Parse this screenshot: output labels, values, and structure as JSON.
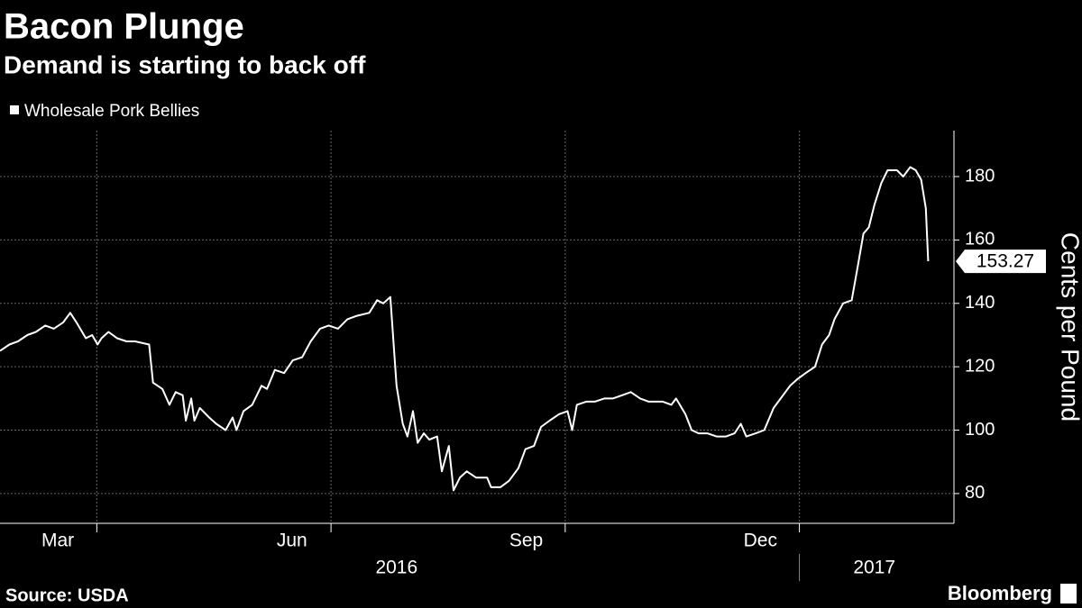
{
  "chart_data": {
    "type": "line",
    "title": "Bacon Plunge",
    "subtitle": "Demand is starting to back off",
    "y_label": "Cents per Pound",
    "source": "Source: USDA",
    "brand": "Bloomberg",
    "legend_position": "top-left",
    "grid": true,
    "xlim": [
      1.76,
      13.98
    ],
    "ylim": [
      70.6,
      194.5
    ],
    "yticks": [
      80,
      100,
      120,
      140,
      160,
      180
    ],
    "xticks": [
      {
        "value": 2.5,
        "label": "Mar"
      },
      {
        "value": 5.5,
        "label": "Jun"
      },
      {
        "value": 8.5,
        "label": "Sep"
      },
      {
        "value": 11.5,
        "label": "Dec"
      }
    ],
    "xgrid": [
      3,
      6,
      9,
      12
    ],
    "year_ticks": [
      {
        "value": 6.84,
        "label": "2016"
      },
      {
        "value": 12.96,
        "label": "2017"
      }
    ],
    "series": [
      {
        "name": "Wholesale Pork Bellies",
        "color": "#ffffff",
        "x": [
          1.76,
          1.88,
          1.99,
          2.11,
          2.22,
          2.34,
          2.45,
          2.57,
          2.66,
          2.74,
          2.86,
          2.94,
          3.01,
          3.06,
          3.15,
          3.26,
          3.38,
          3.49,
          3.67,
          3.72,
          3.84,
          3.93,
          4.01,
          4.1,
          4.14,
          4.21,
          4.25,
          4.32,
          4.44,
          4.53,
          4.65,
          4.74,
          4.79,
          4.88,
          4.99,
          5.11,
          5.18,
          5.28,
          5.4,
          5.51,
          5.63,
          5.74,
          5.86,
          5.97,
          6.09,
          6.21,
          6.32,
          6.49,
          6.59,
          6.67,
          6.76,
          6.84,
          6.92,
          6.98,
          7.05,
          7.11,
          7.19,
          7.26,
          7.36,
          7.42,
          7.51,
          7.57,
          7.65,
          7.74,
          7.86,
          8.0,
          8.05,
          8.17,
          8.28,
          8.4,
          8.49,
          8.6,
          8.69,
          8.8,
          8.92,
          9.03,
          9.09,
          9.15,
          9.27,
          9.38,
          9.5,
          9.61,
          9.73,
          9.84,
          9.96,
          10.07,
          10.25,
          10.36,
          10.42,
          10.54,
          10.62,
          10.71,
          10.82,
          10.94,
          11.06,
          11.17,
          11.25,
          11.32,
          11.44,
          11.55,
          11.67,
          11.76,
          11.88,
          11.97,
          12.08,
          12.2,
          12.29,
          12.38,
          12.45,
          12.56,
          12.67,
          12.75,
          12.82,
          12.89,
          12.96,
          13.05,
          13.13,
          13.25,
          13.33,
          13.42,
          13.49,
          13.56,
          13.62,
          13.65
        ],
        "values": [
          125,
          127,
          128,
          130,
          131,
          133,
          132,
          134,
          137,
          134,
          129,
          130,
          127,
          129,
          131,
          129,
          128,
          128,
          127,
          115,
          113,
          108,
          112,
          111,
          103,
          110,
          103,
          107,
          104,
          102,
          100,
          104,
          100,
          106,
          108,
          114,
          113,
          119,
          118,
          122,
          123,
          128,
          132,
          133,
          132,
          135,
          136,
          137,
          141,
          140,
          142,
          114,
          102,
          98,
          106,
          96,
          99,
          97,
          98,
          87,
          95,
          81,
          85,
          87,
          85,
          85,
          82,
          82,
          84,
          88,
          94,
          95,
          101,
          103,
          105,
          106,
          100,
          108,
          109,
          109,
          110,
          110,
          111,
          112,
          110,
          109,
          109,
          108,
          110,
          105,
          100,
          99,
          99,
          98,
          98,
          99,
          102,
          98,
          99,
          100,
          107,
          110,
          114,
          116,
          118,
          120,
          127,
          130,
          135,
          140,
          141,
          152,
          162,
          164,
          171,
          178,
          182,
          182,
          180,
          183,
          182,
          179,
          170,
          153.27
        ]
      }
    ]
  }
}
